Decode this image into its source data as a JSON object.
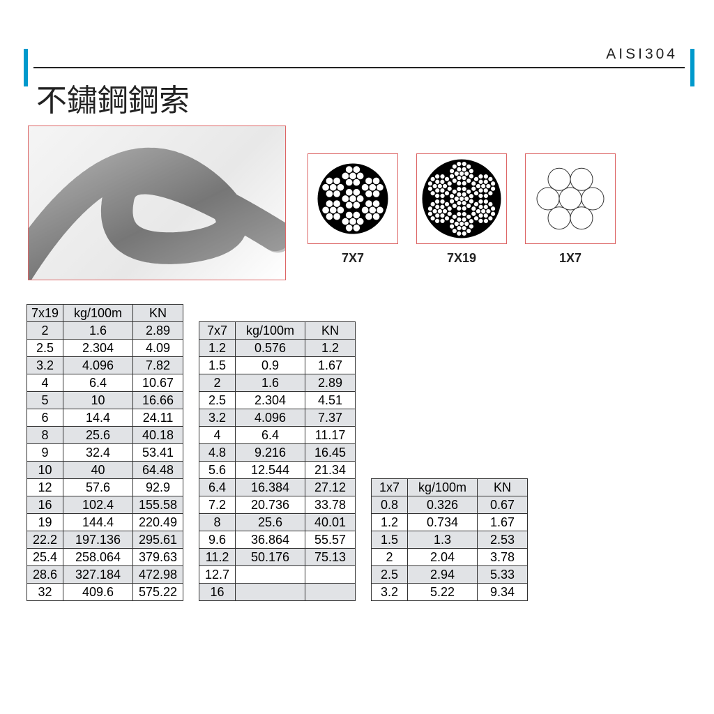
{
  "header": {
    "material": "AISI304",
    "title": "不鏽鋼鋼索",
    "accent_color": "#0099cc",
    "line_color": "#222222"
  },
  "diagrams": [
    {
      "label": "7X7",
      "type": "7x7"
    },
    {
      "label": "7X19",
      "type": "7x19"
    },
    {
      "label": "1X7",
      "type": "1x7"
    }
  ],
  "tables": {
    "t1": {
      "columns": [
        "7x19",
        "kg/100m",
        "KN"
      ],
      "rows": [
        [
          "2",
          "1.6",
          "2.89"
        ],
        [
          "2.5",
          "2.304",
          "4.09"
        ],
        [
          "3.2",
          "4.096",
          "7.82"
        ],
        [
          "4",
          "6.4",
          "10.67"
        ],
        [
          "5",
          "10",
          "16.66"
        ],
        [
          "6",
          "14.4",
          "24.11"
        ],
        [
          "8",
          "25.6",
          "40.18"
        ],
        [
          "9",
          "32.4",
          "53.41"
        ],
        [
          "10",
          "40",
          "64.48"
        ],
        [
          "12",
          "57.6",
          "92.9"
        ],
        [
          "16",
          "102.4",
          "155.58"
        ],
        [
          "19",
          "144.4",
          "220.49"
        ],
        [
          "22.2",
          "197.136",
          "295.61"
        ],
        [
          "25.4",
          "258.064",
          "379.63"
        ],
        [
          "28.6",
          "327.184",
          "472.98"
        ],
        [
          "32",
          "409.6",
          "575.22"
        ]
      ]
    },
    "t2": {
      "columns": [
        "7x7",
        "kg/100m",
        "KN"
      ],
      "rows": [
        [
          "1.2",
          "0.576",
          "1.2"
        ],
        [
          "1.5",
          "0.9",
          "1.67"
        ],
        [
          "2",
          "1.6",
          "2.89"
        ],
        [
          "2.5",
          "2.304",
          "4.51"
        ],
        [
          "3.2",
          "4.096",
          "7.37"
        ],
        [
          "4",
          "6.4",
          "11.17"
        ],
        [
          "4.8",
          "9.216",
          "16.45"
        ],
        [
          "5.6",
          "12.544",
          "21.34"
        ],
        [
          "6.4",
          "16.384",
          "27.12"
        ],
        [
          "7.2",
          "20.736",
          "33.78"
        ],
        [
          "8",
          "25.6",
          "40.01"
        ],
        [
          "9.6",
          "36.864",
          "55.57"
        ],
        [
          "11.2",
          "50.176",
          "75.13"
        ],
        [
          "12.7",
          "",
          ""
        ],
        [
          "16",
          "",
          ""
        ]
      ]
    },
    "t3": {
      "columns": [
        "1x7",
        "kg/100m",
        "KN"
      ],
      "rows": [
        [
          "0.8",
          "0.326",
          "0.67"
        ],
        [
          "1.2",
          "0.734",
          "1.67"
        ],
        [
          "1.5",
          "1.3",
          "2.53"
        ],
        [
          "2",
          "2.04",
          "3.78"
        ],
        [
          "2.5",
          "2.94",
          "5.33"
        ],
        [
          "3.2",
          "5.22",
          "9.34"
        ]
      ]
    }
  },
  "style": {
    "table_border": "#333333",
    "row_alt_bg": "#e1e3e6",
    "diagram_border": "#d66",
    "font_size_table": 18,
    "font_size_title": 44
  }
}
